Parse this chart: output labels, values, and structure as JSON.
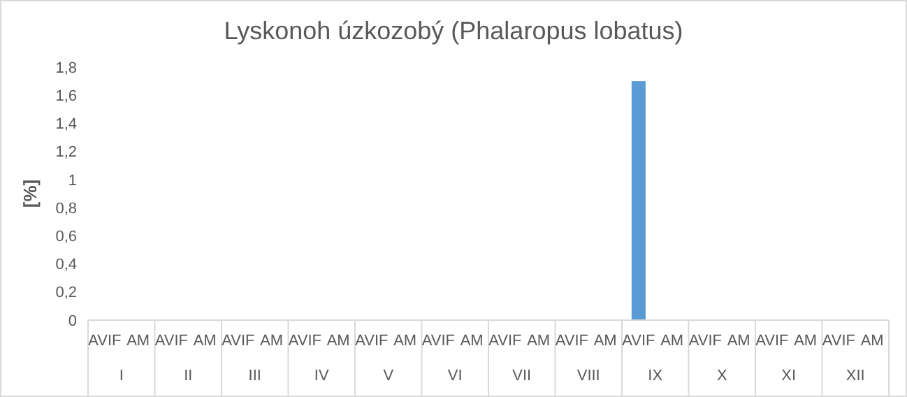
{
  "chart_data": {
    "type": "bar",
    "title": "Lyskonoh úzkozobý (Phalaropus lobatus)",
    "ylabel": "[%]",
    "categories": [
      "I",
      "II",
      "III",
      "IV",
      "V",
      "VI",
      "VII",
      "VIII",
      "IX",
      "X",
      "XI",
      "XII"
    ],
    "series": [
      {
        "name": "AVIF",
        "color": "#5b9bd5",
        "values": [
          0,
          0,
          0,
          0,
          0,
          0,
          0,
          0,
          1.7,
          0,
          0,
          0
        ]
      },
      {
        "name": "AM",
        "values": [
          0,
          0,
          0,
          0,
          0,
          0,
          0,
          0,
          0,
          0,
          0,
          0
        ]
      }
    ],
    "ylim": [
      0,
      1.8
    ],
    "yticks": [
      0,
      {
        "value": 0.2,
        "label": "0,2"
      },
      {
        "value": 0.4,
        "label": "0,4"
      },
      {
        "value": 0.6,
        "label": "0,6"
      },
      {
        "value": 0.8,
        "label": "0,8"
      },
      1,
      {
        "value": 1.2,
        "label": "1,2"
      },
      {
        "value": 1.4,
        "label": "1,4"
      },
      {
        "value": 1.6,
        "label": "1,6"
      },
      {
        "value": 1.8,
        "label": "1,8"
      }
    ],
    "grid": false
  }
}
